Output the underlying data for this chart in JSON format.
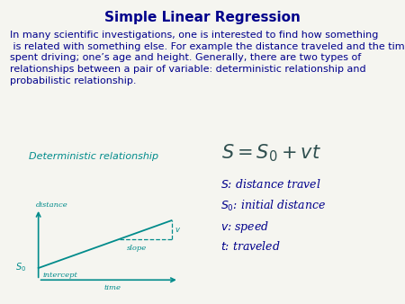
{
  "title": "Simple Linear Regression",
  "title_color": "#00008B",
  "title_fontsize": 11,
  "body_text": "In many scientific investigations, one is interested to find how something\n is related with something else. For example the distance traveled and the time\nspent driving; one’s age and height. Generally, there are two types of\nrelationships between a pair of variable: deterministic relationship and\nprobabilistic relationship.",
  "body_color": "#00008B",
  "body_fontsize": 8.0,
  "det_rel_text": "  Deterministic relationship",
  "det_rel_color": "#008B8B",
  "det_rel_fontsize": 8.0,
  "formula": "$S = S_0 + vt$",
  "formula_color": "#2F4F4F",
  "formula_fontsize": 15,
  "legend_lines": [
    "$S$: distance travel",
    "$S_0$: initial distance",
    "$v$: speed",
    "$t$: traveled"
  ],
  "legend_color": "#00008B",
  "legend_fontsize": 9.0,
  "axis_color": "#008B8B",
  "line_color": "#008B8B",
  "dashed_color": "#008B8B",
  "label_color": "#008B8B",
  "bg_color": "#f5f5f0"
}
